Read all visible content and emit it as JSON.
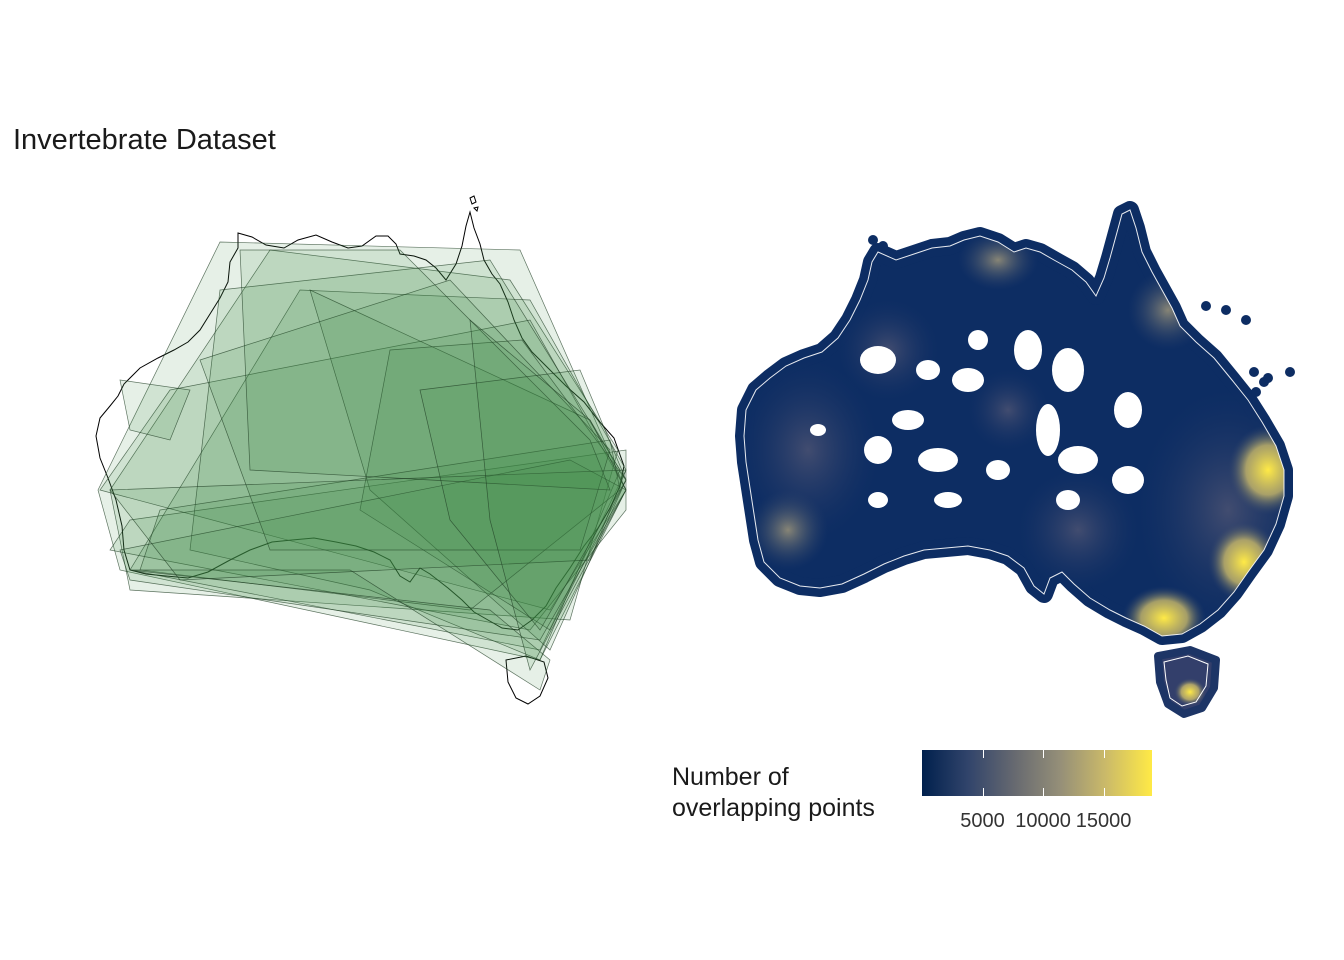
{
  "title": "Invertebrate Dataset",
  "legend": {
    "title_lines": [
      "Number of",
      "overlapping points"
    ],
    "ticks": [
      5000,
      10000,
      15000
    ],
    "tick_labels": [
      "5000",
      "10000",
      "15000"
    ],
    "range": [
      0,
      19000
    ],
    "palette": [
      "#00204d",
      "#31446b",
      "#666970",
      "#958f78",
      "#cbba69",
      "#ffea46"
    ]
  },
  "colors": {
    "hull_fill": "#3f8a45",
    "hull_stroke": "#1f3d24",
    "outline": "#000000",
    "point_base": "#0d2d63",
    "point_high": "#ffea46",
    "coast_highlight": "#ffffff"
  },
  "panels": [
    {
      "name": "convex-hull-map",
      "type": "hull"
    },
    {
      "name": "point-density-map",
      "type": "points"
    }
  ]
}
